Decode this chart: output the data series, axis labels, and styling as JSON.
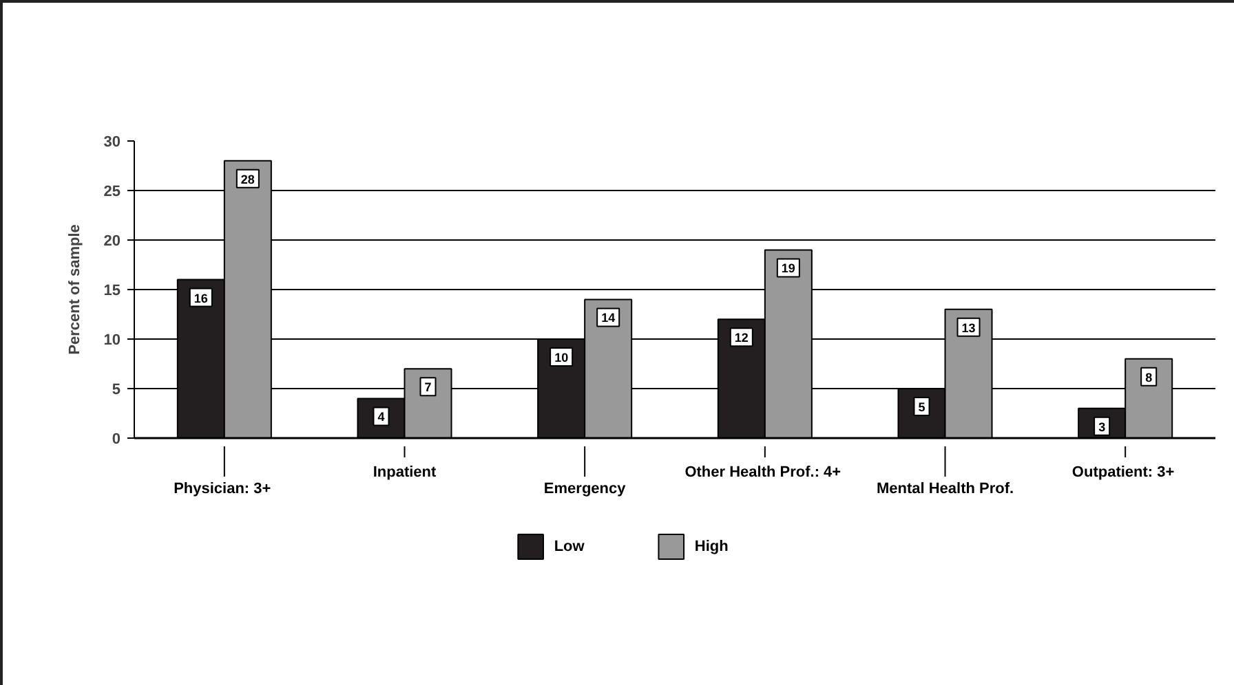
{
  "chart_data": {
    "type": "bar",
    "ylabel": "Percent of sample",
    "categories": [
      "Physician:  3+",
      "Inpatient",
      "Emergency",
      "Other Health Prof.:  4+",
      "Mental Health Prof.",
      "Outpatient:  3+"
    ],
    "series": [
      {
        "name": "Low",
        "color": "#231f20",
        "values": [
          16,
          4,
          10,
          12,
          5,
          3
        ]
      },
      {
        "name": "High",
        "color": "#999999",
        "values": [
          28,
          7,
          14,
          19,
          13,
          8
        ]
      }
    ],
    "ylim": [
      0,
      30
    ],
    "yticks": [
      0,
      5,
      10,
      15,
      20,
      25,
      30
    ],
    "grid": "y",
    "legend": "bottom",
    "data_labels": true
  }
}
